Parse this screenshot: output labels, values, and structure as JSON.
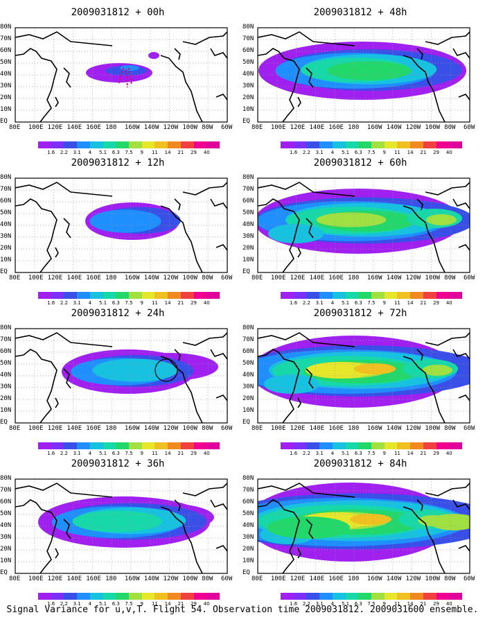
{
  "panels": [
    {
      "title": "2009031812 + 00h",
      "stage": 0
    },
    {
      "title": "2009031812 + 48h",
      "stage": 4
    },
    {
      "title": "2009031812 + 12h",
      "stage": 1
    },
    {
      "title": "2009031812 + 60h",
      "stage": 5
    },
    {
      "title": "2009031812 + 24h",
      "stage": 2
    },
    {
      "title": "2009031812 + 72h",
      "stage": 6
    },
    {
      "title": "2009031812 + 36h",
      "stage": 3
    },
    {
      "title": "2009031812 + 84h",
      "stage": 7
    }
  ],
  "lat_labels": [
    "80N",
    "70N",
    "60N",
    "50N",
    "40N",
    "30N",
    "20N",
    "10N",
    "EQ"
  ],
  "lon_labels": [
    "80E",
    "100E",
    "120E",
    "140E",
    "160E",
    "180",
    "160W",
    "140W",
    "120W",
    "100W",
    "80W",
    "60W"
  ],
  "colorbar": {
    "labels": [
      "1.6",
      "2.2",
      "3.1",
      "4",
      "5.1",
      "6.3",
      "7.5",
      "9",
      "11",
      "14",
      "21",
      "29",
      "40"
    ],
    "colors": [
      "#a020f0",
      "#7b2ff7",
      "#3a4fe8",
      "#1f8fff",
      "#16c2e0",
      "#16d8a8",
      "#22d86a",
      "#a0e040",
      "#e6e62a",
      "#f0c020",
      "#f08a20",
      "#f04040",
      "#f00090",
      "#e0009a"
    ]
  },
  "footer": "Signal Variance for u,v,T. Flight 54. Observation time 2009031812. 2009031600 ensemble.",
  "markers": {
    "panel_00h": "flight track (magenta dashes)",
    "panel_24h": "circle near 130W 45N"
  }
}
